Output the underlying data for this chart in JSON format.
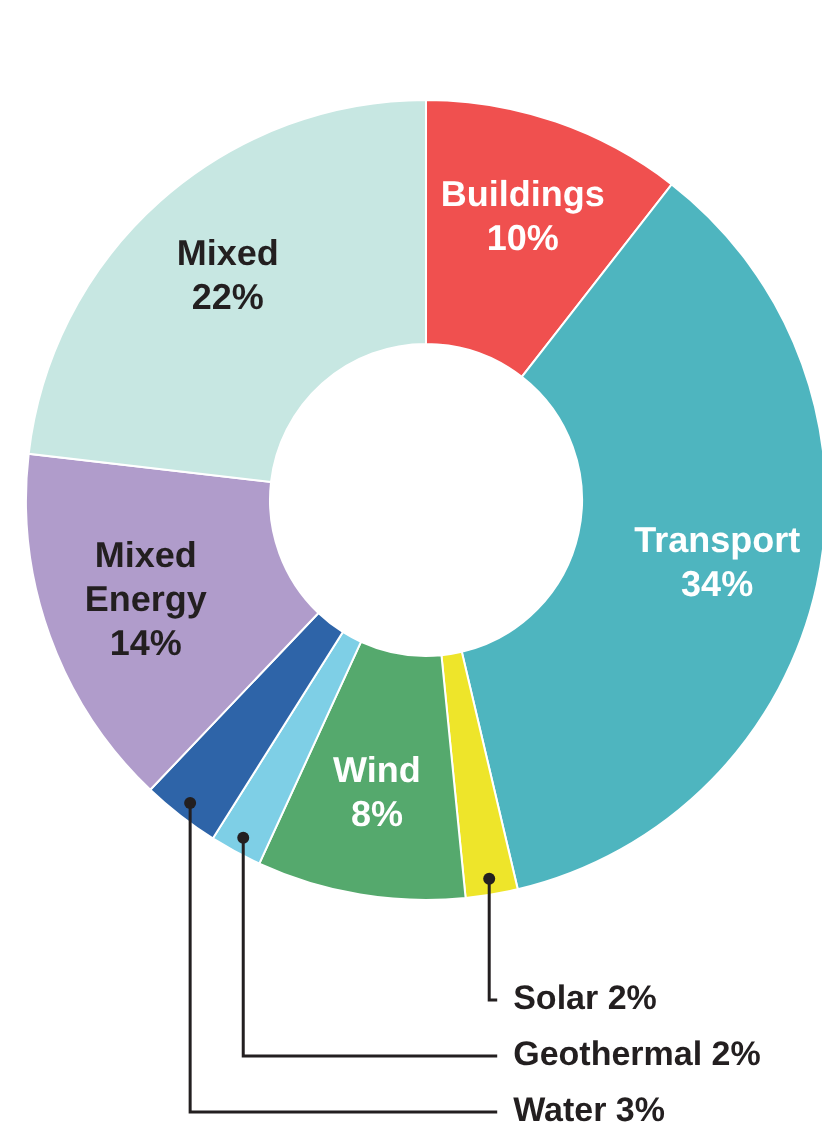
{
  "chart_data": {
    "type": "donut",
    "categories": [
      "Buildings",
      "Transport",
      "Solar",
      "Wind",
      "Geothermal",
      "Water",
      "Mixed Energy",
      "Mixed"
    ],
    "values": [
      10,
      34,
      2,
      8,
      2,
      3,
      14,
      22
    ],
    "value_labels": [
      "10%",
      "34%",
      "2%",
      "8%",
      "2%",
      "3%",
      "14%",
      "22%"
    ],
    "colors": [
      "#f0504f",
      "#4eb5bf",
      "#eee52a",
      "#55a96d",
      "#7ecfe6",
      "#2e64a8",
      "#b09ccb",
      "#c7e7e2"
    ]
  }
}
